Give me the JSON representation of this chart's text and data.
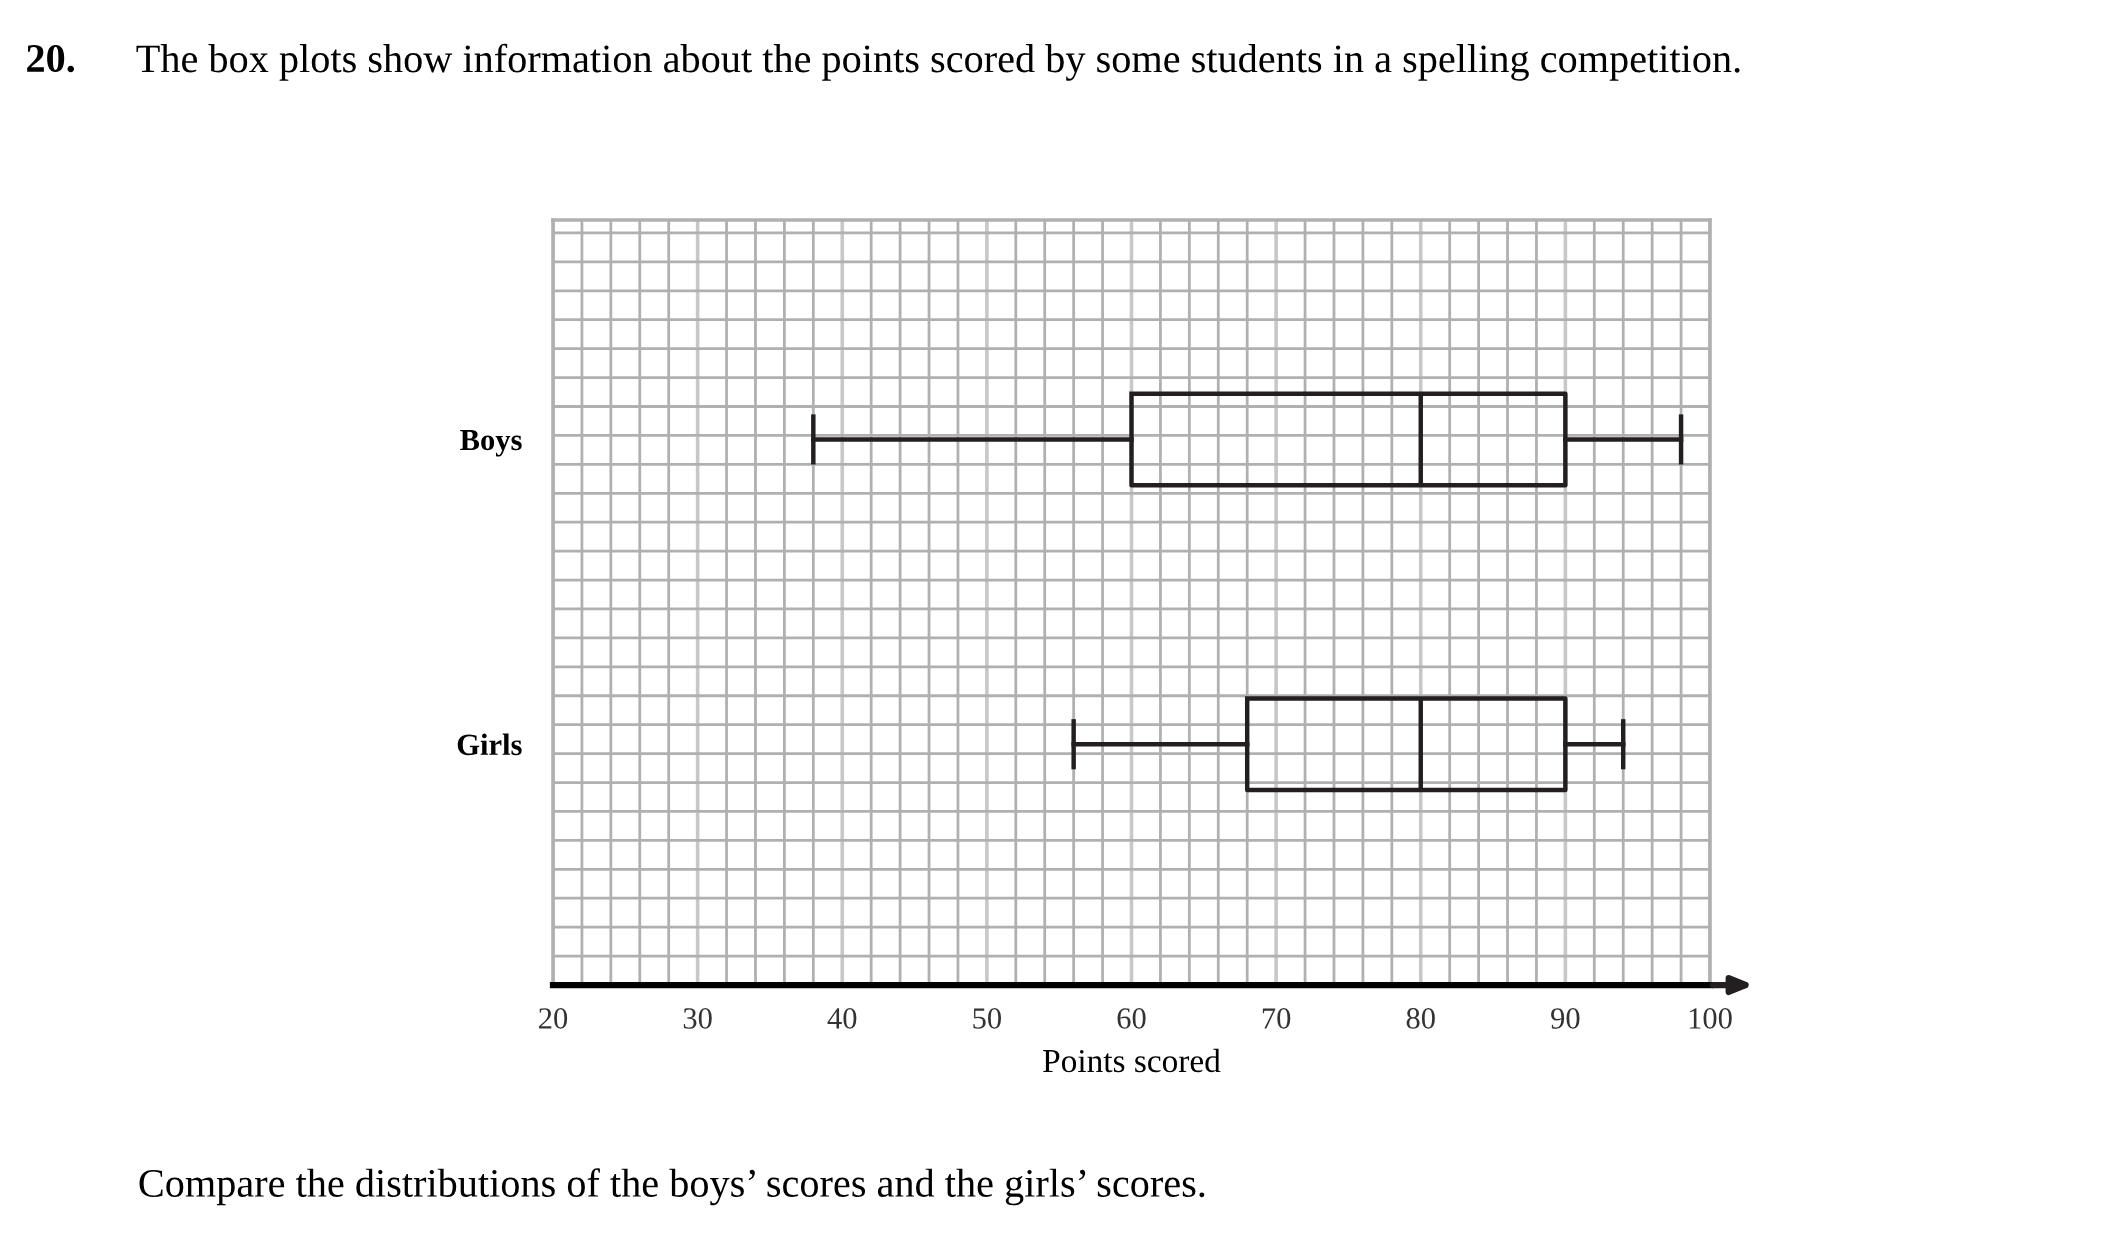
{
  "chart_data": {
    "type": "box",
    "orientation": "horizontal",
    "title": "The box plots show information about the points scored by some students in a spelling competition.",
    "xlabel": "Points scored",
    "categories": [
      "Boys",
      "Girls"
    ],
    "boxes": [
      {
        "low": 38,
        "q1": 60,
        "median": 80,
        "q3": 90,
        "high": 98
      },
      {
        "low": 56,
        "q1": 68,
        "median": 80,
        "q3": 90,
        "high": 94
      }
    ],
    "color": "#231f20",
    "xlim": [
      20,
      100
    ],
    "xticks": [
      20,
      30,
      40,
      50,
      60,
      70,
      80,
      90,
      100
    ],
    "grid": true,
    "annotations": [
      "20.",
      "Compare the distributions of the boys’ scores and the girls’ scores."
    ]
  }
}
